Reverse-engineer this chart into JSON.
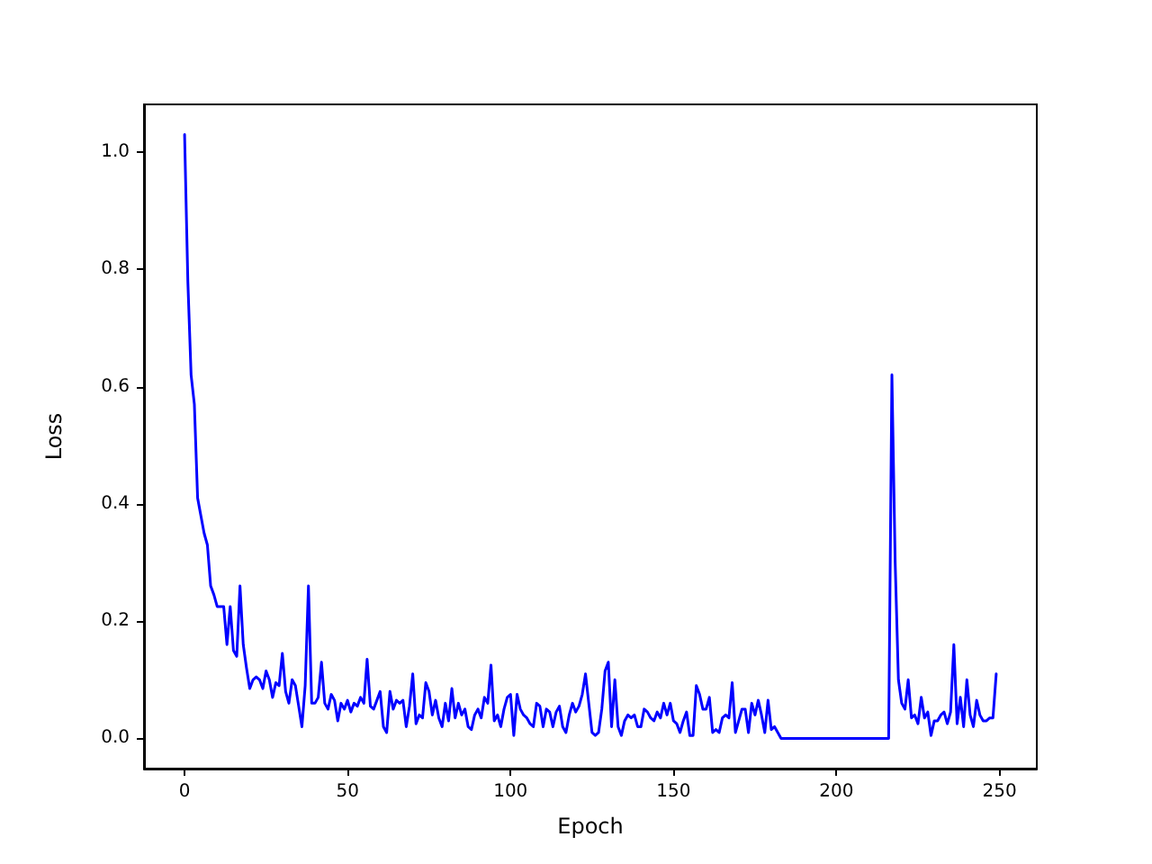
{
  "chart_data": {
    "type": "line",
    "xlabel": "Epoch",
    "ylabel": "Loss",
    "grid": false,
    "marker": "none",
    "line_style": "solid",
    "xlim": [
      -12.45,
      261.45
    ],
    "ylim": [
      -0.0515,
      1.0815
    ],
    "xticks": [
      0,
      50,
      100,
      150,
      200,
      250
    ],
    "yticks": [
      {
        "value": 0,
        "label": "0.0"
      },
      {
        "value": 0.2,
        "label": "0.2"
      },
      {
        "value": 0.4,
        "label": "0.4"
      },
      {
        "value": 0.6,
        "label": "0.6"
      },
      {
        "value": 0.8,
        "label": "0.8"
      },
      {
        "value": 1,
        "label": "1.0"
      }
    ],
    "series": [
      {
        "color": "#0000ff",
        "x": [
          0,
          1,
          2,
          3,
          4,
          5,
          6,
          7,
          8,
          9,
          10,
          11,
          12,
          13,
          14,
          15,
          16,
          17,
          18,
          19,
          20,
          21,
          22,
          23,
          24,
          25,
          26,
          27,
          28,
          29,
          30,
          31,
          32,
          33,
          34,
          35,
          36,
          37,
          38,
          39,
          40,
          41,
          42,
          43,
          44,
          45,
          46,
          47,
          48,
          49,
          50,
          51,
          52,
          53,
          54,
          55,
          56,
          57,
          58,
          59,
          60,
          61,
          62,
          63,
          64,
          65,
          66,
          67,
          68,
          69,
          70,
          71,
          72,
          73,
          74,
          75,
          76,
          77,
          78,
          79,
          80,
          81,
          82,
          83,
          84,
          85,
          86,
          87,
          88,
          89,
          90,
          91,
          92,
          93,
          94,
          95,
          96,
          97,
          98,
          99,
          100,
          101,
          102,
          103,
          104,
          105,
          106,
          107,
          108,
          109,
          110,
          111,
          112,
          113,
          114,
          115,
          116,
          117,
          118,
          119,
          120,
          121,
          122,
          123,
          124,
          125,
          126,
          127,
          128,
          129,
          130,
          131,
          132,
          133,
          134,
          135,
          136,
          137,
          138,
          139,
          140,
          141,
          142,
          143,
          144,
          145,
          146,
          147,
          148,
          149,
          150,
          151,
          152,
          153,
          154,
          155,
          156,
          157,
          158,
          159,
          160,
          161,
          162,
          163,
          164,
          165,
          166,
          167,
          168,
          169,
          170,
          171,
          172,
          173,
          174,
          175,
          176,
          177,
          178,
          179,
          180,
          181,
          182,
          183,
          216,
          217,
          218,
          219,
          220,
          221,
          222,
          223,
          224,
          225,
          226,
          227,
          228,
          229,
          230,
          231,
          232,
          233,
          234,
          235,
          236,
          237,
          238,
          239,
          240,
          241,
          242,
          243,
          244,
          245,
          246,
          247,
          248,
          249
        ],
        "values": [
          1.03,
          0.78,
          0.62,
          0.57,
          0.41,
          0.38,
          0.35,
          0.33,
          0.26,
          0.245,
          0.225,
          0.225,
          0.225,
          0.16,
          0.225,
          0.15,
          0.14,
          0.26,
          0.16,
          0.12,
          0.085,
          0.1,
          0.105,
          0.1,
          0.085,
          0.115,
          0.1,
          0.07,
          0.095,
          0.09,
          0.145,
          0.08,
          0.06,
          0.1,
          0.09,
          0.055,
          0.02,
          0.09,
          0.26,
          0.06,
          0.06,
          0.07,
          0.13,
          0.06,
          0.05,
          0.075,
          0.065,
          0.03,
          0.06,
          0.05,
          0.065,
          0.045,
          0.06,
          0.055,
          0.07,
          0.06,
          0.135,
          0.055,
          0.05,
          0.065,
          0.08,
          0.02,
          0.01,
          0.08,
          0.05,
          0.065,
          0.06,
          0.065,
          0.02,
          0.055,
          0.11,
          0.025,
          0.04,
          0.035,
          0.095,
          0.08,
          0.04,
          0.065,
          0.035,
          0.02,
          0.06,
          0.03,
          0.085,
          0.035,
          0.06,
          0.04,
          0.05,
          0.02,
          0.015,
          0.04,
          0.05,
          0.035,
          0.07,
          0.06,
          0.125,
          0.03,
          0.04,
          0.02,
          0.05,
          0.07,
          0.075,
          0.005,
          0.075,
          0.05,
          0.04,
          0.035,
          0.025,
          0.02,
          0.06,
          0.055,
          0.02,
          0.05,
          0.045,
          0.02,
          0.045,
          0.055,
          0.02,
          0.01,
          0.04,
          0.06,
          0.045,
          0.055,
          0.075,
          0.11,
          0.06,
          0.01,
          0.005,
          0.01,
          0.05,
          0.115,
          0.13,
          0.02,
          0.1,
          0.02,
          0.005,
          0.03,
          0.04,
          0.035,
          0.04,
          0.02,
          0.02,
          0.05,
          0.045,
          0.035,
          0.03,
          0.045,
          0.035,
          0.06,
          0.04,
          0.06,
          0.03,
          0.025,
          0.01,
          0.03,
          0.045,
          0.005,
          0.005,
          0.09,
          0.075,
          0.05,
          0.05,
          0.07,
          0.01,
          0.015,
          0.01,
          0.035,
          0.04,
          0.035,
          0.095,
          0.01,
          0.03,
          0.05,
          0.05,
          0.01,
          0.06,
          0.04,
          0.065,
          0.04,
          0.01,
          0.065,
          0.015,
          0.02,
          0.01,
          0,
          0,
          0.62,
          0.3,
          0.1,
          0.06,
          0.05,
          0.1,
          0.035,
          0.04,
          0.025,
          0.07,
          0.035,
          0.045,
          0.005,
          0.03,
          0.03,
          0.04,
          0.045,
          0.025,
          0.045,
          0.16,
          0.025,
          0.07,
          0.02,
          0.1,
          0.04,
          0.02,
          0.065,
          0.04,
          0.03,
          0.03,
          0.035,
          0.035,
          0.11
        ]
      }
    ]
  }
}
